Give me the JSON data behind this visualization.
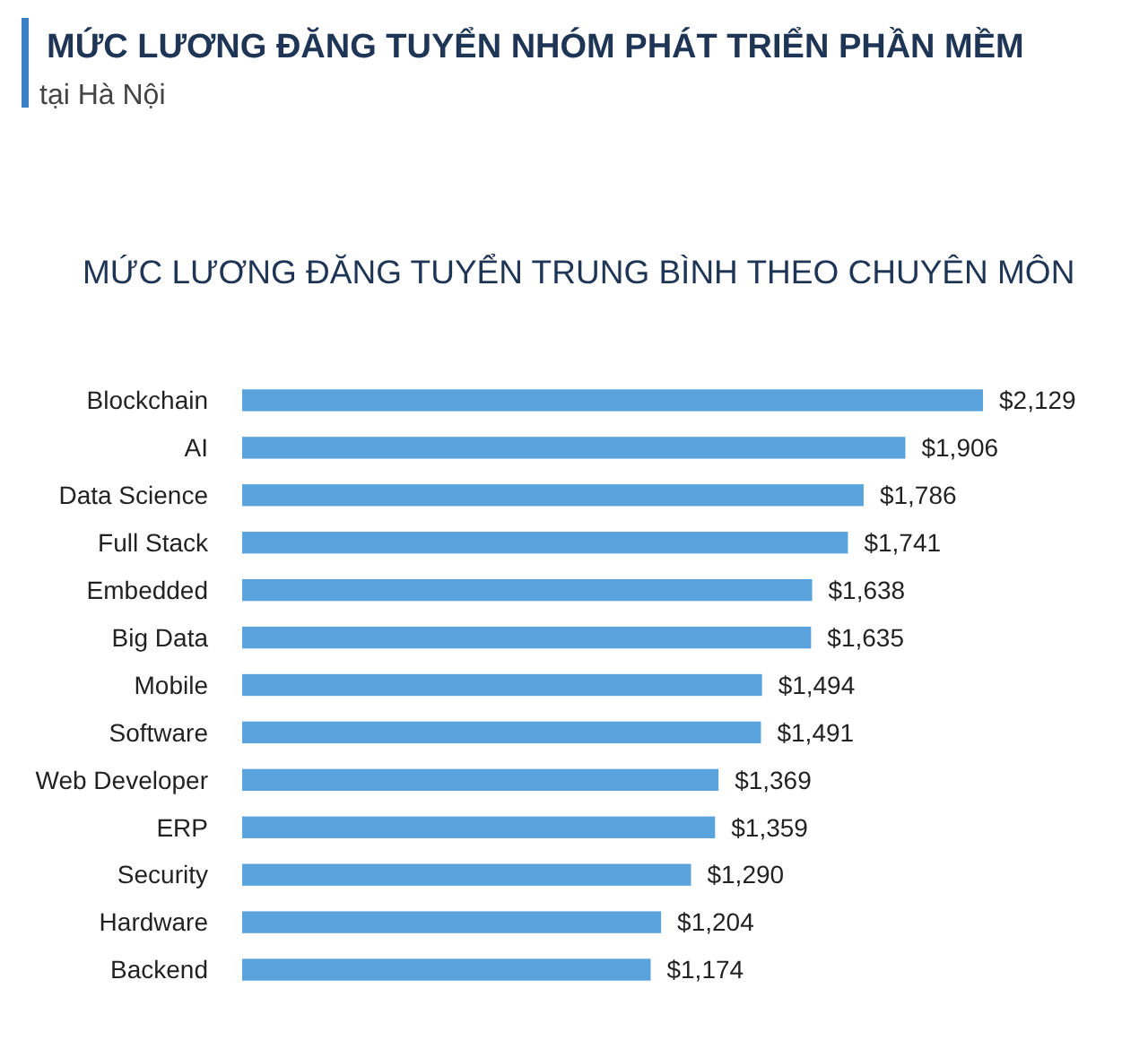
{
  "chart_data": {
    "type": "bar",
    "orientation": "horizontal",
    "title": "MỨC LƯƠNG ĐĂNG TUYỂN NHÓM PHÁT TRIỂN PHẦN MỀM",
    "subtitle": "tại Hà Nội",
    "annotations": [
      "MỨC LƯƠNG ĐĂNG TUYỂN TRUNG BÌNH THEO CHUYÊN MÔN"
    ],
    "categories": [
      "Blockchain",
      "AI",
      "Data Science",
      "Full Stack",
      "Embedded",
      "Big Data",
      "Mobile",
      "Software",
      "Web Developer",
      "ERP",
      "Security",
      "Hardware",
      "Backend"
    ],
    "values": [
      2129,
      1906,
      1786,
      1741,
      1638,
      1635,
      1494,
      1491,
      1369,
      1359,
      1290,
      1204,
      1174
    ],
    "value_labels": [
      "$2,129",
      "$1,906",
      "$1,786",
      "$1,741",
      "$1,638",
      "$1,635",
      "$1,494",
      "$1,491",
      "$1,369",
      "$1,359",
      "$1,290",
      "$1,204",
      "$1,174"
    ],
    "color": "#5ba3dc"
  }
}
